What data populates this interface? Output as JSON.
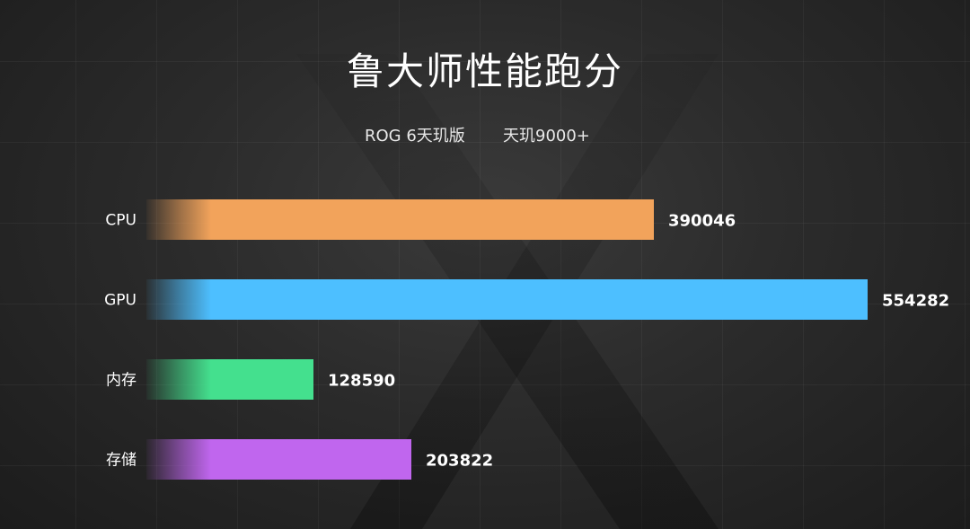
{
  "title": "鲁大师性能跑分",
  "subtitle_left": "ROG 6天玑版",
  "subtitle_right": "天玑9000+",
  "chart_data": {
    "type": "bar",
    "orientation": "horizontal",
    "title": "鲁大师性能跑分",
    "subtitle": "ROG 6天玑版    天玑9000+",
    "categories": [
      "CPU",
      "GPU",
      "内存",
      "存储"
    ],
    "values": [
      390046,
      554282,
      128590,
      203822
    ],
    "colors": [
      "#f2a35b",
      "#4dbfff",
      "#44e08e",
      "#c066ee"
    ],
    "xlim": [
      0,
      554282
    ],
    "grid": false
  }
}
